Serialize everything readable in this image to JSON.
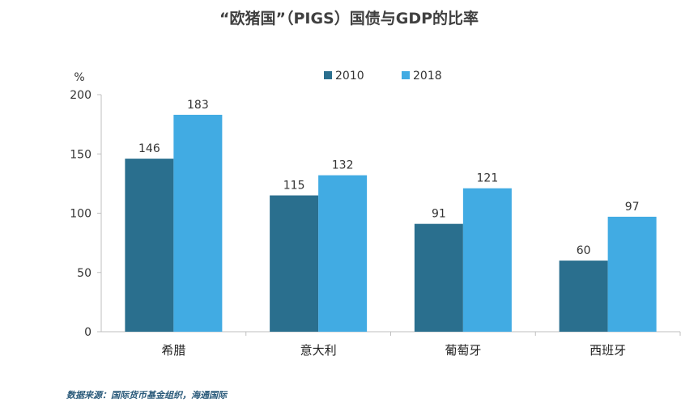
{
  "title": "“欧猪国”（PIGS）国债与GDP的比率",
  "source": "数据来源：国际货币基金组织，海通国际",
  "colors": {
    "2010": "#2a6f8e",
    "2018": "#41abe3"
  },
  "chart_data": {
    "type": "bar",
    "title": "“欧猪国”（PIGS）国债与GDP的比率",
    "ylabel": "%",
    "ylim": [
      0,
      200
    ],
    "yticks": [
      0,
      50,
      100,
      150,
      200
    ],
    "categories": [
      "希腊",
      "意大利",
      "葡萄牙",
      "西班牙"
    ],
    "series": [
      {
        "name": "2010",
        "values": [
          146,
          115,
          91,
          60
        ]
      },
      {
        "name": "2018",
        "values": [
          183,
          132,
          121,
          97
        ]
      }
    ],
    "legend": "top-center",
    "grid": false
  }
}
